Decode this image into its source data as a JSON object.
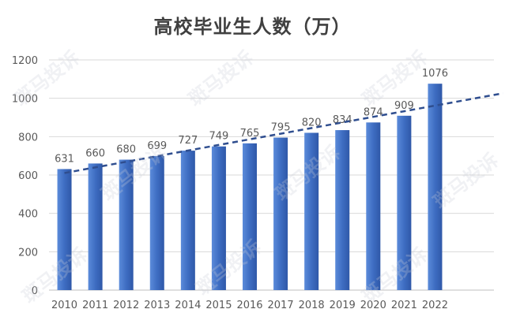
{
  "chart_data": {
    "type": "bar",
    "title": "高校毕业生人数（万）",
    "categories": [
      "2010",
      "2011",
      "2012",
      "2013",
      "2014",
      "2015",
      "2016",
      "2017",
      "2018",
      "2019",
      "2020",
      "2021",
      "2022"
    ],
    "values": [
      631,
      660,
      680,
      699,
      727,
      749,
      765,
      795,
      820,
      834,
      874,
      909,
      1076
    ],
    "ylim": [
      0,
      1200
    ],
    "yticks": [
      0,
      200,
      400,
      600,
      800,
      1000,
      1200
    ],
    "grid": true,
    "trendline": {
      "style": "dashed",
      "type": "linear"
    },
    "colors": {
      "bar": "#3E6DC2",
      "bar_light": "#5B8BDA",
      "trend": "#2F4E8F",
      "grid": "#D9D9D9",
      "text": "#595959"
    }
  },
  "watermark": {
    "text": "斑马投诉"
  }
}
